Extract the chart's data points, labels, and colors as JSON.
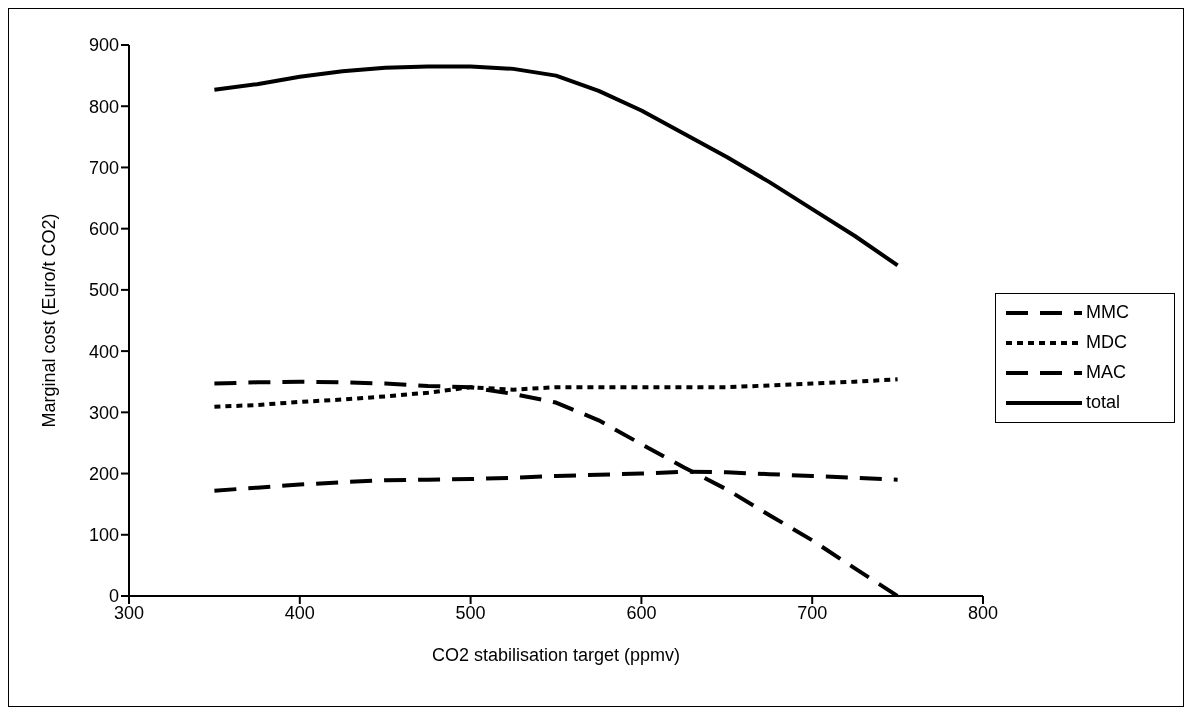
{
  "chart_data": {
    "type": "line",
    "xlabel": "CO2 stabilisation target (ppmv)",
    "ylabel": "Marginal cost (Euro/t CO2)",
    "x": [
      350,
      375,
      400,
      425,
      450,
      475,
      500,
      525,
      550,
      575,
      600,
      625,
      650,
      675,
      700,
      725,
      750
    ],
    "xlim": [
      300,
      800
    ],
    "xticks": [
      300,
      400,
      500,
      600,
      700,
      800
    ],
    "ylim": [
      0,
      900
    ],
    "yticks": [
      0,
      100,
      200,
      300,
      400,
      500,
      600,
      700,
      800,
      900
    ],
    "grid": false,
    "legend": "right",
    "marker": "none",
    "series": [
      {
        "name": "MMC",
        "color": "#000000",
        "line_style": "dashed",
        "values": [
          172,
          177,
          182,
          186,
          189,
          190,
          191,
          193,
          196,
          198,
          200,
          203,
          202,
          199,
          196,
          193,
          190
        ]
      },
      {
        "name": "MDC",
        "color": "#000000",
        "line_style": "dotted",
        "values": [
          309,
          312,
          317,
          321,
          326,
          332,
          341,
          337,
          341,
          341,
          341,
          341,
          341,
          344,
          347,
          350,
          354
        ]
      },
      {
        "name": "MAC",
        "color": "#000000",
        "line_style": "dashed",
        "values": [
          347,
          349,
          350,
          349,
          347,
          343,
          341,
          330,
          316,
          287,
          248,
          210,
          174,
          132,
          91,
          45,
          0
        ]
      },
      {
        "name": "total",
        "color": "#000000",
        "line_style": "solid",
        "values": [
          827,
          836,
          848,
          857,
          863,
          865,
          865,
          861,
          850,
          825,
          793,
          755,
          717,
          676,
          632,
          588,
          540
        ]
      }
    ]
  }
}
